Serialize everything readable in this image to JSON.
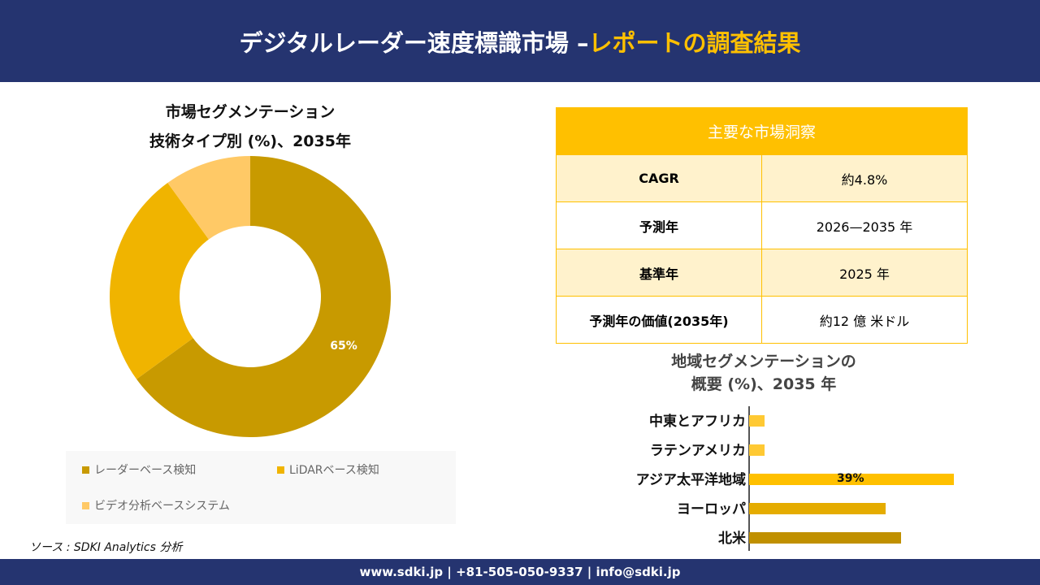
{
  "header": {
    "title_main": "デジタルレーダー速度標識市場 –",
    "title_highlight": "レポートの調査結果"
  },
  "footer": {
    "text": "www.sdki.jp | +81-505-050-9337 | info@sdki.jp"
  },
  "source": "ソース : SDKI Analytics 分析",
  "insights": {
    "title": "主要な市場洞察",
    "rows": [
      {
        "label": "CAGR",
        "value": "約4.8%"
      },
      {
        "label": "予測年",
        "value": "2026—2035 年"
      },
      {
        "label": "基準年",
        "value": "2025 年"
      },
      {
        "label": "予測年の価値(2035年)",
        "value": "約12 億 米ドル"
      }
    ]
  },
  "chart_data": [
    {
      "type": "pie",
      "donut": true,
      "title": [
        "市場セグメンテーション",
        "技術タイプ別 (%)、2035年"
      ],
      "categories": [
        "レーダーベース検知",
        "LiDARベース検知",
        "ビデオ分析ベースシステム"
      ],
      "values": [
        65,
        25,
        10
      ],
      "colors": [
        "#C89A00",
        "#F0B400",
        "#FFC966"
      ],
      "data_labels": [
        "65%",
        "",
        ""
      ],
      "legend": "bottom"
    },
    {
      "type": "bar",
      "orientation": "horizontal",
      "title": [
        "地域セグメンテーションの",
        "概要 (%)、2035 年"
      ],
      "categories": [
        "中東とアフリカ",
        "ラテンアメリカ",
        "アジア太平洋地域",
        "ヨーロッパ",
        "北米"
      ],
      "values": [
        3,
        3,
        39,
        26,
        29
      ],
      "colors": [
        "#FFC933",
        "#FFC933",
        "#FFC000",
        "#E5AC00",
        "#C09000"
      ],
      "data_labels": [
        "",
        "",
        "39%",
        "",
        ""
      ]
    }
  ]
}
